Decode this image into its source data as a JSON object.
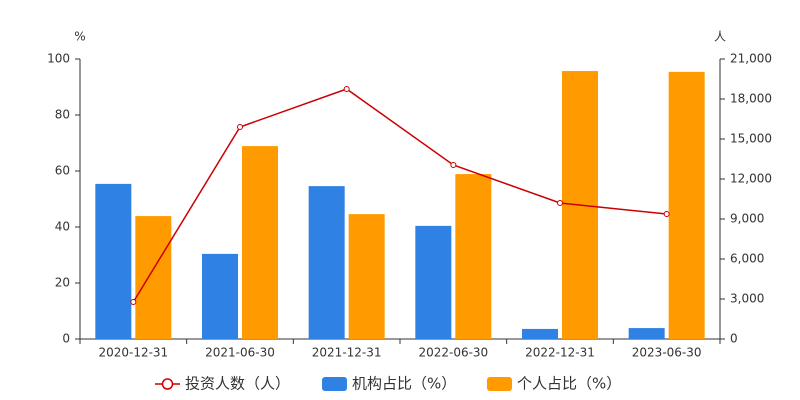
{
  "chart_data": {
    "type": "bar",
    "y_label": "%",
    "y2_label": "人",
    "categories": [
      "2020-12-31",
      "2021-06-30",
      "2021-12-31",
      "2022-06-30",
      "2022-12-31",
      "2023-06-30"
    ],
    "series": [
      {
        "name": "投资人数（人）",
        "type": "line",
        "axis": "y2",
        "color": "#cc0000",
        "values": [
          2775,
          15900,
          18750,
          13050,
          10200,
          9375
        ]
      },
      {
        "name": "机构占比（%）",
        "type": "bar",
        "color": "#2f81e3",
        "values": [
          55.4,
          30.4,
          54.6,
          40.4,
          3.6,
          3.9
        ]
      },
      {
        "name": "个人占比（%）",
        "type": "bar",
        "color": "#ff9a00",
        "values": [
          43.9,
          68.9,
          44.6,
          58.9,
          95.7,
          95.4
        ]
      }
    ],
    "ylim": [
      0,
      100
    ],
    "yticks": [
      0,
      20,
      40,
      60,
      80,
      100
    ],
    "y2lim": [
      0,
      21000
    ],
    "y2ticks": [
      0,
      {
        "value": 3000,
        "label": "3,000"
      },
      {
        "value": 6000,
        "label": "6,000"
      },
      {
        "value": 9000,
        "label": "9,000"
      },
      {
        "value": 12000,
        "label": "12,000"
      },
      {
        "value": 15000,
        "label": "15,000"
      },
      {
        "value": 18000,
        "label": "18,000"
      },
      {
        "value": 21000,
        "label": "21,000"
      }
    ],
    "grid": false
  }
}
